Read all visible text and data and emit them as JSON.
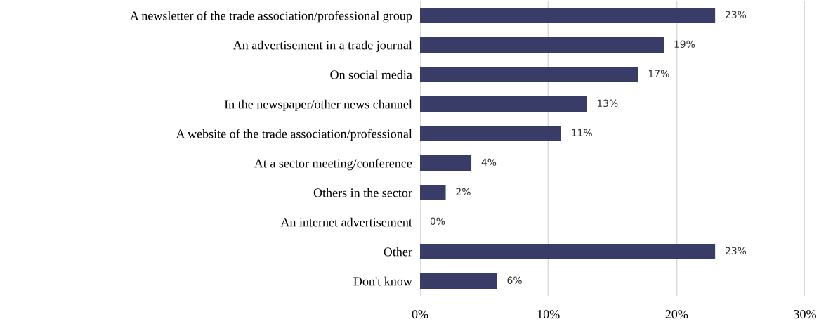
{
  "chart_data": {
    "type": "bar",
    "orientation": "horizontal",
    "categories": [
      "A newsletter of the trade association/professional group",
      "An advertisement in a trade journal",
      "On social media",
      "In the newspaper/other news channel",
      "A website of the trade association/professional",
      "At a sector meeting/conference",
      "Others in the sector",
      "An internet advertisement",
      "Other",
      "Don't know"
    ],
    "values": [
      23,
      19,
      17,
      13,
      11,
      4,
      2,
      0,
      23,
      6
    ],
    "value_labels": [
      "23%",
      "19%",
      "17%",
      "13%",
      "11%",
      "4%",
      "2%",
      "0%",
      "23%",
      "6%"
    ],
    "color": "#3a3c68",
    "xlim": [
      0,
      30
    ],
    "xticks": [
      {
        "value": 0,
        "label": "0%"
      },
      {
        "value": 10,
        "label": "10%"
      },
      {
        "value": 20,
        "label": "20%"
      },
      {
        "value": 30,
        "label": "30%"
      }
    ],
    "grid": "x",
    "legend": false
  }
}
